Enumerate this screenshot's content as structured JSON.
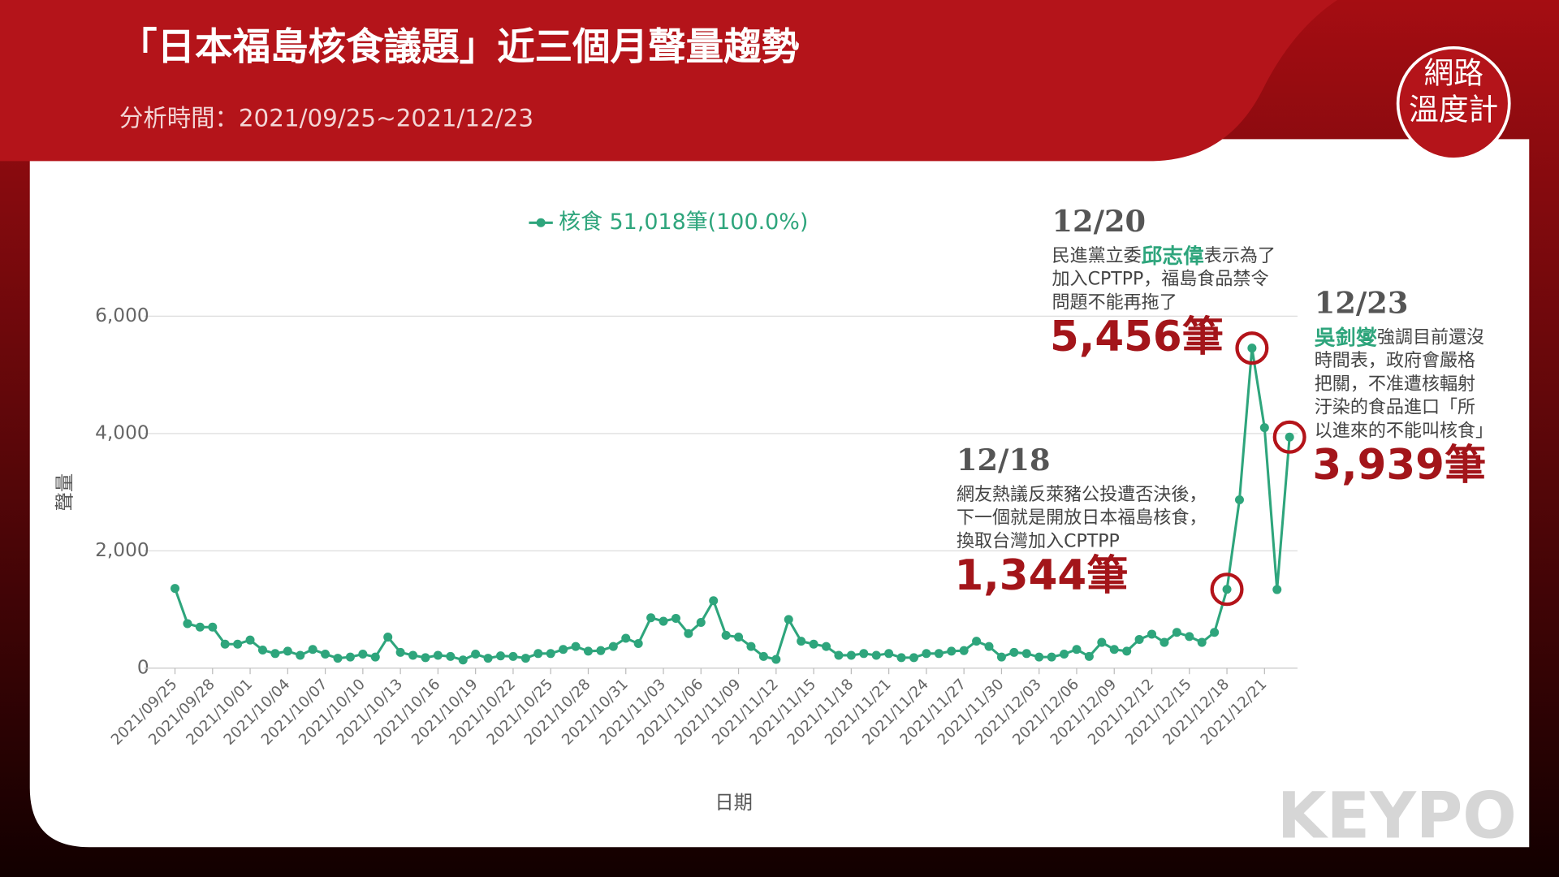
{
  "header": {
    "title": "「日本福島核食議題」近三個月聲量趨勢",
    "subtitle": "分析時間：2021/09/25~2021/12/23"
  },
  "logo": {
    "lines": [
      "網路",
      "溫度計"
    ]
  },
  "watermark": "KEYPO",
  "chart_data": {
    "type": "line",
    "x_label": "日期",
    "y_label": "聲量",
    "categories": [
      "2021/09/25",
      null,
      null,
      "2021/09/28",
      null,
      null,
      "2021/10/01",
      null,
      null,
      "2021/10/04",
      null,
      null,
      "2021/10/07",
      null,
      null,
      "2021/10/10",
      null,
      null,
      "2021/10/13",
      null,
      null,
      "2021/10/16",
      null,
      null,
      "2021/10/19",
      null,
      null,
      "2021/10/22",
      null,
      null,
      "2021/10/25",
      null,
      null,
      "2021/10/28",
      null,
      null,
      "2021/10/31",
      null,
      null,
      "2021/11/03",
      null,
      null,
      "2021/11/06",
      null,
      null,
      "2021/11/09",
      null,
      null,
      "2021/11/12",
      null,
      null,
      "2021/11/15",
      null,
      null,
      "2021/11/18",
      null,
      null,
      "2021/11/21",
      null,
      null,
      "2021/11/24",
      null,
      null,
      "2021/11/27",
      null,
      null,
      "2021/11/30",
      null,
      null,
      "2021/12/03",
      null,
      null,
      "2021/12/06",
      null,
      null,
      "2021/12/09",
      null,
      null,
      "2021/12/12",
      null,
      null,
      "2021/12/15",
      null,
      null,
      "2021/12/18",
      null,
      null,
      "2021/12/21",
      null,
      null
    ],
    "series": [
      {
        "name": "核食 51,018筆(100.0%)",
        "color": "#2ea57c",
        "values": [
          1360,
          760,
          700,
          700,
          410,
          410,
          480,
          310,
          250,
          290,
          220,
          320,
          240,
          170,
          190,
          240,
          190,
          530,
          270,
          220,
          180,
          220,
          200,
          140,
          240,
          170,
          210,
          200,
          170,
          250,
          250,
          320,
          370,
          290,
          300,
          370,
          510,
          420,
          860,
          800,
          850,
          590,
          780,
          1150,
          560,
          530,
          370,
          200,
          150,
          830,
          460,
          410,
          370,
          220,
          220,
          250,
          220,
          250,
          180,
          180,
          250,
          250,
          290,
          300,
          460,
          370,
          190,
          270,
          250,
          190,
          190,
          240,
          320,
          200,
          440,
          320,
          290,
          490,
          580,
          440,
          610,
          540,
          440,
          610,
          1344,
          2870,
          5456,
          4100,
          1340,
          3939
        ],
        "value_labels": [
          null,
          null,
          null,
          null,
          null,
          null,
          null,
          null,
          null,
          null,
          null,
          null,
          null,
          null,
          null,
          null,
          null,
          null,
          null,
          null,
          null,
          null,
          null,
          null,
          null,
          null,
          null,
          null,
          null,
          null,
          null,
          null,
          null,
          null,
          null,
          null,
          null,
          null,
          null,
          null,
          null,
          null,
          null,
          null,
          null,
          null,
          null,
          null,
          null,
          null,
          null,
          null,
          null,
          null,
          null,
          null,
          null,
          null,
          null,
          null,
          null,
          null,
          null,
          null,
          null,
          null,
          null,
          null,
          null,
          null,
          null,
          null,
          null,
          null,
          null,
          null,
          null,
          null,
          null,
          null,
          null,
          null,
          null,
          null,
          "1,344筆",
          null,
          "5,456筆",
          null,
          null,
          "3,939筆"
        ]
      }
    ],
    "ylim": [
      0,
      6000
    ],
    "yticks": [
      0,
      {
        "value": 2000,
        "label": "2,000"
      },
      {
        "value": 4000,
        "label": "4,000"
      },
      {
        "value": 6000,
        "label": "6,000"
      }
    ],
    "grid": true,
    "annotations": [
      {
        "date": "12/18",
        "lines": [
          [
            {
              "text": "網友熱議反萊豬公投遭否決後，"
            }
          ],
          [
            {
              "text": "下一個就是開放日本福島核食，"
            }
          ],
          [
            {
              "text": "換取台灣加入CPTPP"
            }
          ]
        ]
      },
      {
        "date": "12/20",
        "lines": [
          [
            {
              "text": "民進黨立委"
            },
            {
              "text": "邱志偉",
              "highlight": true
            },
            {
              "text": "表示為了"
            }
          ],
          [
            {
              "text": "加入CPTPP，福島食品禁令"
            }
          ],
          [
            {
              "text": "問題不能再拖了"
            }
          ]
        ]
      },
      {
        "date": "12/23",
        "lines": [
          [
            {
              "text": "吳釗燮",
              "highlight": true
            },
            {
              "text": "強調目前還沒"
            }
          ],
          [
            {
              "text": "時間表，政府會嚴格"
            }
          ],
          [
            {
              "text": "把關，不准遭核輻射"
            }
          ],
          [
            {
              "text": "汙染的食品進口「所"
            }
          ],
          [
            {
              "text": "以進來的不能叫核食」"
            }
          ]
        ]
      }
    ]
  }
}
